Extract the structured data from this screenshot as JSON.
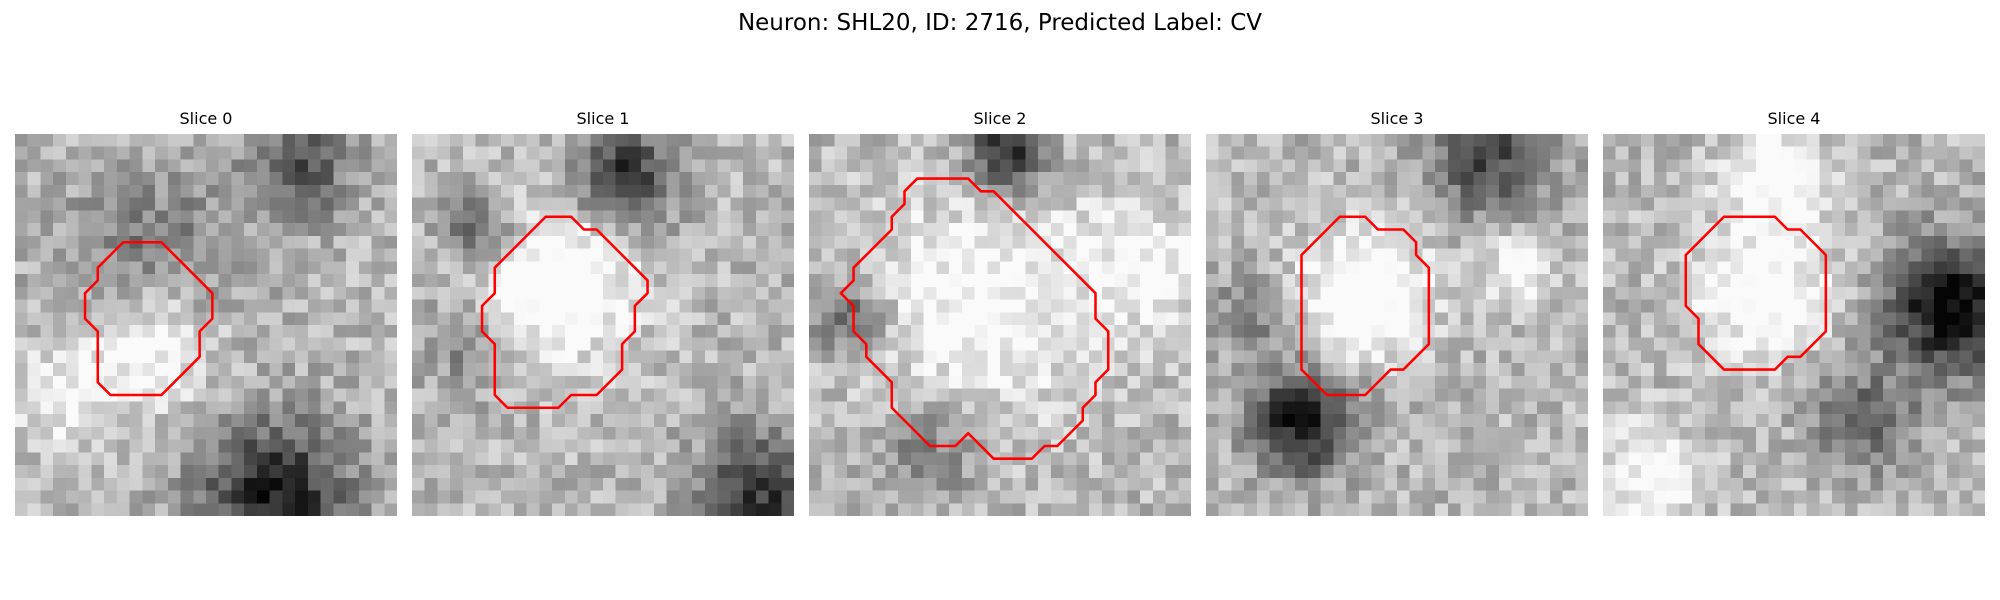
{
  "figure": {
    "title": "Neuron: SHL20, ID: 2716, Predicted Label: CV",
    "outline_color": "#ff0000"
  },
  "panels": [
    {
      "title": "Slice 0",
      "brightness": "light center, dark lower-right",
      "outline": [
        [
          9.5,
          8.5
        ],
        [
          11.5,
          8.5
        ],
        [
          13.5,
          10.5
        ],
        [
          15.5,
          12.5
        ],
        [
          15.5,
          14.5
        ],
        [
          14.5,
          15.5
        ],
        [
          14.5,
          17.5
        ],
        [
          13.5,
          18.5
        ],
        [
          12.5,
          19.5
        ],
        [
          11.5,
          20.5
        ],
        [
          8.5,
          20.5
        ],
        [
          7.5,
          20.5
        ],
        [
          6.5,
          19.5
        ],
        [
          6.5,
          16.5
        ],
        [
          6.5,
          15.5
        ],
        [
          5.5,
          14.5
        ],
        [
          5.5,
          12.5
        ],
        [
          6.5,
          11.5
        ],
        [
          6.5,
          10.5
        ],
        [
          8.5,
          8.5
        ]
      ]
    },
    {
      "title": "Slice 1",
      "brightness": "bright center, dark top",
      "outline": [
        [
          10.5,
          6.5
        ],
        [
          12.5,
          6.5
        ],
        [
          13.5,
          7.5
        ],
        [
          14.5,
          7.5
        ],
        [
          16.5,
          9.5
        ],
        [
          17.5,
          10.5
        ],
        [
          18.5,
          11.5
        ],
        [
          18.5,
          12.5
        ],
        [
          17.5,
          13.5
        ],
        [
          17.5,
          15.5
        ],
        [
          16.5,
          16.5
        ],
        [
          16.5,
          18.5
        ],
        [
          15.5,
          19.5
        ],
        [
          14.5,
          20.5
        ],
        [
          12.5,
          20.5
        ],
        [
          11.5,
          21.5
        ],
        [
          8.5,
          21.5
        ],
        [
          7.5,
          21.5
        ],
        [
          6.5,
          20.5
        ],
        [
          6.5,
          18.5
        ],
        [
          6.5,
          16.5
        ],
        [
          5.5,
          15.5
        ],
        [
          5.5,
          13.5
        ],
        [
          6.5,
          12.5
        ],
        [
          6.5,
          10.5
        ],
        [
          8.5,
          8.5
        ]
      ]
    },
    {
      "title": "Slice 2",
      "brightness": "large bright soma",
      "outline": [
        [
          8.5,
          3.5
        ],
        [
          10.5,
          3.5
        ],
        [
          12.5,
          3.5
        ],
        [
          13.5,
          4.5
        ],
        [
          14.5,
          4.5
        ],
        [
          15.5,
          5.5
        ],
        [
          17.5,
          7.5
        ],
        [
          18.5,
          8.5
        ],
        [
          19.5,
          9.5
        ],
        [
          20.5,
          10.5
        ],
        [
          21.5,
          11.5
        ],
        [
          22.5,
          12.5
        ],
        [
          22.5,
          14.5
        ],
        [
          23.5,
          15.5
        ],
        [
          23.5,
          18.5
        ],
        [
          22.5,
          19.5
        ],
        [
          22.5,
          20.5
        ],
        [
          21.5,
          21.5
        ],
        [
          21.5,
          22.5
        ],
        [
          20.5,
          23.5
        ],
        [
          19.5,
          24.5
        ],
        [
          18.5,
          24.5
        ],
        [
          17.5,
          25.5
        ],
        [
          15.5,
          25.5
        ],
        [
          14.5,
          25.5
        ],
        [
          12.5,
          23.5
        ],
        [
          11.5,
          24.5
        ],
        [
          9.5,
          24.5
        ],
        [
          8.5,
          23.5
        ],
        [
          7.5,
          22.5
        ],
        [
          6.5,
          21.5
        ],
        [
          6.5,
          19.5
        ],
        [
          5.5,
          18.5
        ],
        [
          4.5,
          17.5
        ],
        [
          4.5,
          16.5
        ],
        [
          3.5,
          15.5
        ],
        [
          3.5,
          13.5
        ],
        [
          2.5,
          12.5
        ],
        [
          3.5,
          11.5
        ],
        [
          3.5,
          10.5
        ],
        [
          4.5,
          9.5
        ],
        [
          5.5,
          8.5
        ],
        [
          6.5,
          7.5
        ],
        [
          6.5,
          6.5
        ],
        [
          7.5,
          5.5
        ],
        [
          7.5,
          4.5
        ]
      ]
    },
    {
      "title": "Slice 3",
      "brightness": "bright center, dark lower-left",
      "outline": [
        [
          10.5,
          6.5
        ],
        [
          12.5,
          6.5
        ],
        [
          13.5,
          7.5
        ],
        [
          15.5,
          7.5
        ],
        [
          16.5,
          8.5
        ],
        [
          16.5,
          9.5
        ],
        [
          17.5,
          10.5
        ],
        [
          17.5,
          14.5
        ],
        [
          17.5,
          16.5
        ],
        [
          16.5,
          17.5
        ],
        [
          15.5,
          18.5
        ],
        [
          14.5,
          18.5
        ],
        [
          12.5,
          20.5
        ],
        [
          11.5,
          20.5
        ],
        [
          9.5,
          20.5
        ],
        [
          8.5,
          19.5
        ],
        [
          7.5,
          18.5
        ],
        [
          7.5,
          16.5
        ],
        [
          7.5,
          14.5
        ],
        [
          7.5,
          12.5
        ],
        [
          7.5,
          10.5
        ],
        [
          7.5,
          9.5
        ]
      ]
    },
    {
      "title": "Slice 4",
      "brightness": "bright left, dark right",
      "outline": [
        [
          11.5,
          6.5
        ],
        [
          12.5,
          6.5
        ],
        [
          13.5,
          6.5
        ],
        [
          14.5,
          7.5
        ],
        [
          15.5,
          7.5
        ],
        [
          17.5,
          9.5
        ],
        [
          17.5,
          12.5
        ],
        [
          17.5,
          15.5
        ],
        [
          16.5,
          16.5
        ],
        [
          15.5,
          17.5
        ],
        [
          14.5,
          17.5
        ],
        [
          13.5,
          18.5
        ],
        [
          11.5,
          18.5
        ],
        [
          9.5,
          18.5
        ],
        [
          8.5,
          17.5
        ],
        [
          7.5,
          16.5
        ],
        [
          7.5,
          14.5
        ],
        [
          6.5,
          13.5
        ],
        [
          6.5,
          11.5
        ],
        [
          6.5,
          9.5
        ],
        [
          8.5,
          7.5
        ],
        [
          9.5,
          6.5
        ]
      ]
    }
  ]
}
